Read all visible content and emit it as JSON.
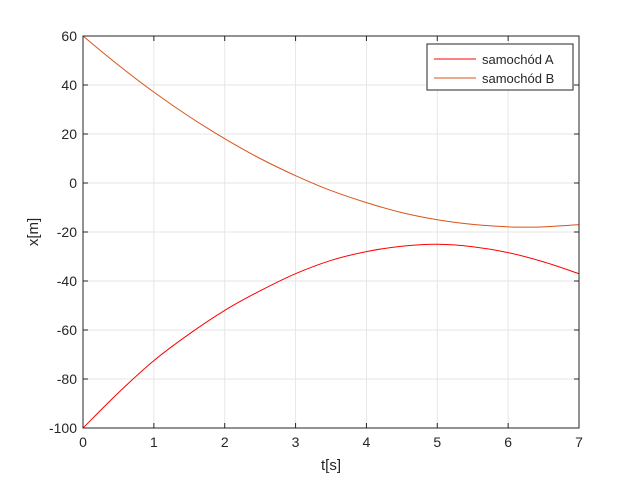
{
  "chart_data": {
    "type": "line",
    "title": "",
    "xlabel": "t[s]",
    "ylabel": "x[m]",
    "xlim": [
      0,
      7
    ],
    "ylim": [
      -100,
      60
    ],
    "xticks": [
      0,
      1,
      2,
      3,
      4,
      5,
      6,
      7
    ],
    "yticks": [
      -100,
      -80,
      -60,
      -40,
      -20,
      0,
      20,
      40,
      60
    ],
    "grid": true,
    "legend_position": "top-right",
    "series": [
      {
        "name": "samochód A",
        "color": "#ff0000",
        "x": [
          0,
          0.5,
          1,
          1.5,
          2,
          2.5,
          3,
          3.5,
          4,
          4.5,
          5,
          5.5,
          6,
          6.5,
          7
        ],
        "y": [
          -100,
          -85.6,
          -72.5,
          -61.6,
          -52,
          -44,
          -37,
          -31.6,
          -28,
          -25.8,
          -25,
          -26,
          -28.4,
          -32.2,
          -37
        ]
      },
      {
        "name": "samochód B",
        "color": "#d95319",
        "x": [
          0,
          0.5,
          1,
          1.5,
          2,
          2.5,
          3,
          3.5,
          4,
          4.5,
          5,
          5.5,
          6,
          6.25,
          6.5,
          7
        ],
        "y": [
          60,
          48.1,
          37.1,
          27.1,
          18.1,
          10,
          3,
          -3.1,
          -8,
          -12.1,
          -15,
          -16.9,
          -17.9,
          -18,
          -17.9,
          -17
        ]
      }
    ]
  }
}
